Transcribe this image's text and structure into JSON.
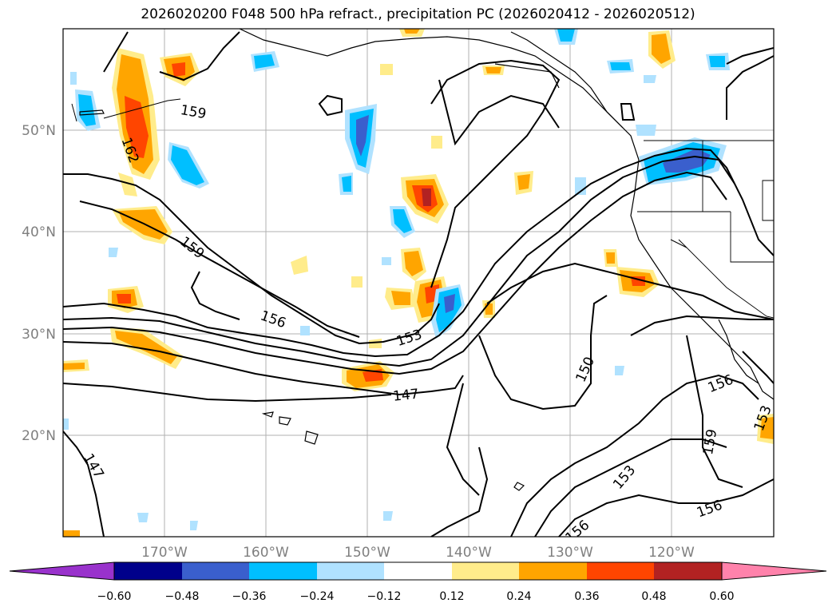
{
  "title": "2026020200 F048 500 hPa refract., precipitation PC (2026020412 - 2026020512)",
  "map": {
    "lat_labels": [
      "50°N",
      "40°N",
      "30°N",
      "20°N"
    ],
    "lon_labels": [
      "170°W",
      "160°W",
      "150°W",
      "140°W",
      "130°W",
      "120°W"
    ],
    "contour_labels": [
      "159",
      "162",
      "159",
      "156",
      "153",
      "147",
      "150",
      "156",
      "153",
      "159",
      "153",
      "156",
      "156",
      "147"
    ]
  },
  "colorbar": {
    "ticks": [
      "−0.60",
      "−0.48",
      "−0.36",
      "−0.24",
      "−0.12",
      "0.12",
      "0.24",
      "0.36",
      "0.48",
      "0.60"
    ],
    "colors": [
      "#9932cc",
      "#00008b",
      "#3a5fcd",
      "#00bfff",
      "#b0e2ff",
      "#ffffff",
      "#ffec8b",
      "#ffa500",
      "#ff4500",
      "#b22222",
      "#ff82ab"
    ]
  }
}
